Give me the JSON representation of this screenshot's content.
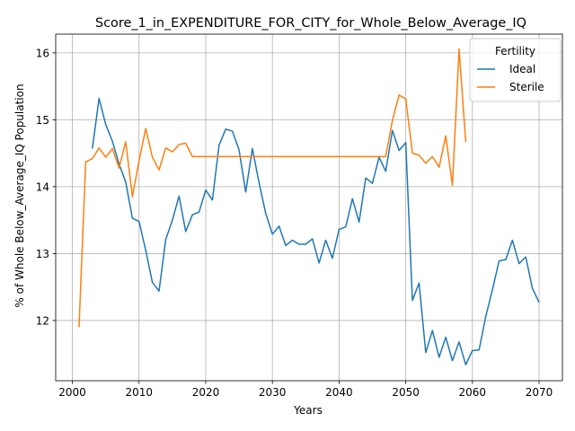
{
  "chart_data": {
    "type": "line",
    "title": "Score_1_in_EXPENDITURE_FOR_CITY_for_Whole_Below_Average_IQ",
    "xlabel": "Years",
    "ylabel": "% of Whole Below_Average_IQ Population",
    "xlim": [
      1997.5,
      2073.5
    ],
    "ylim": [
      11.1,
      16.28
    ],
    "xticks": [
      2000,
      2010,
      2020,
      2030,
      2040,
      2050,
      2060,
      2070
    ],
    "yticks": [
      12,
      13,
      14,
      15,
      16
    ],
    "grid": true,
    "legend": {
      "title": "Fertility",
      "placement": "top-right"
    },
    "series": [
      {
        "name": "Ideal",
        "color": "#1f77b4",
        "x": [
          2003,
          2004,
          2005,
          2006,
          2007,
          2008,
          2009,
          2010,
          2011,
          2012,
          2013,
          2014,
          2015,
          2016,
          2017,
          2018,
          2019,
          2020,
          2021,
          2022,
          2023,
          2024,
          2025,
          2026,
          2027,
          2028,
          2029,
          2030,
          2031,
          2032,
          2033,
          2034,
          2035,
          2036,
          2037,
          2038,
          2039,
          2040,
          2041,
          2042,
          2043,
          2044,
          2045,
          2046,
          2047,
          2048,
          2049,
          2050,
          2051,
          2052,
          2053,
          2054,
          2055,
          2056,
          2057,
          2058,
          2059,
          2060,
          2061,
          2062,
          2063,
          2064,
          2065,
          2066,
          2067,
          2068,
          2069,
          2070
        ],
        "y": [
          14.57,
          15.32,
          14.93,
          14.68,
          14.34,
          14.07,
          13.53,
          13.48,
          13.05,
          12.57,
          12.44,
          13.21,
          13.5,
          13.86,
          13.33,
          13.58,
          13.62,
          13.95,
          13.8,
          14.62,
          14.86,
          14.83,
          14.55,
          13.92,
          14.57,
          14.06,
          13.6,
          13.29,
          13.41,
          13.12,
          13.2,
          13.14,
          13.14,
          13.22,
          12.86,
          13.2,
          12.93,
          13.36,
          13.4,
          13.82,
          13.47,
          14.13,
          14.05,
          14.44,
          14.23,
          14.84,
          14.54,
          14.66,
          12.3,
          12.56,
          11.52,
          11.85,
          11.45,
          11.75,
          11.4,
          11.68,
          11.34,
          11.55,
          11.56,
          12.06,
          12.46,
          12.89,
          12.91,
          13.2,
          12.85,
          12.95,
          12.48,
          12.27
        ]
      },
      {
        "name": "Sterile",
        "color": "#ff7f0e",
        "x": [
          2001,
          2002,
          2003,
          2004,
          2005,
          2006,
          2007,
          2008,
          2009,
          2010,
          2011,
          2012,
          2013,
          2014,
          2015,
          2016,
          2017,
          2018,
          2019,
          2020,
          2021,
          2022,
          2023,
          2024,
          2025,
          2026,
          2027,
          2028,
          2029,
          2030,
          2031,
          2032,
          2033,
          2034,
          2035,
          2036,
          2037,
          2038,
          2039,
          2040,
          2041,
          2042,
          2043,
          2044,
          2045,
          2046,
          2047,
          2048,
          2049,
          2050,
          2051,
          2052,
          2053,
          2054,
          2055,
          2056,
          2057,
          2058,
          2059
        ],
        "y": [
          11.9,
          14.37,
          14.42,
          14.58,
          14.44,
          14.57,
          14.28,
          14.67,
          13.85,
          14.39,
          14.87,
          14.44,
          14.25,
          14.58,
          14.52,
          14.63,
          14.65,
          14.45,
          14.45,
          14.45,
          14.45,
          14.45,
          14.45,
          14.45,
          14.45,
          14.45,
          14.45,
          14.45,
          14.45,
          14.45,
          14.45,
          14.45,
          14.45,
          14.45,
          14.45,
          14.45,
          14.45,
          14.45,
          14.45,
          14.45,
          14.45,
          14.45,
          14.45,
          14.45,
          14.45,
          14.45,
          14.45,
          14.99,
          15.37,
          15.31,
          14.5,
          14.47,
          14.35,
          14.45,
          14.29,
          14.76,
          14.02,
          16.06,
          14.67
        ]
      }
    ]
  }
}
